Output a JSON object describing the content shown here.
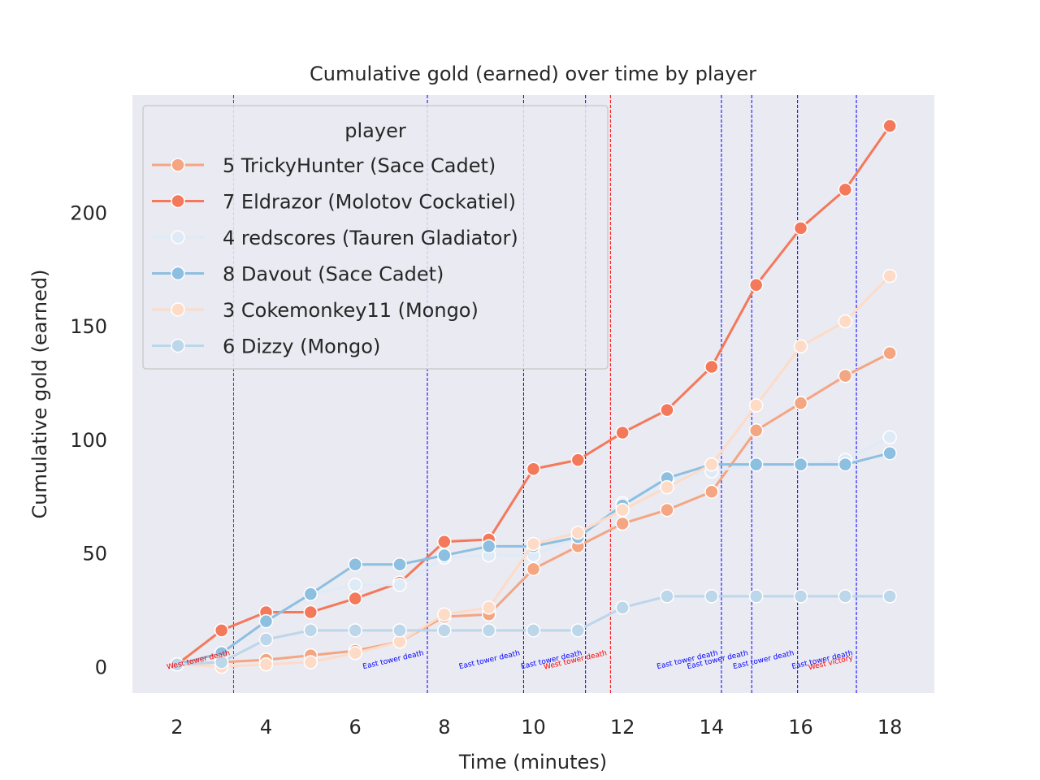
{
  "chart_data": {
    "type": "line",
    "title": "Cumulative gold (earned) over time by player",
    "xlabel": "Time (minutes)",
    "ylabel": "Cumulative gold (earned)",
    "xlim": [
      1.0,
      19.0
    ],
    "ylim": [
      -11.6,
      251.6
    ],
    "x_ticks": [
      2,
      4,
      6,
      8,
      10,
      12,
      14,
      16,
      18
    ],
    "y_ticks": [
      0,
      50,
      100,
      150,
      200
    ],
    "grid": false,
    "legend": {
      "title": "player",
      "placement": "top-left"
    },
    "x": [
      2,
      3,
      4,
      5,
      6,
      7,
      8,
      9,
      10,
      11,
      12,
      13,
      14,
      15,
      16,
      17,
      18
    ],
    "series": [
      {
        "name": "5 TrickyHunter (Sace Cadet)",
        "color": "#f4a582",
        "values": [
          1,
          2,
          3,
          5,
          7,
          11,
          22,
          23,
          43,
          53,
          63,
          69,
          77,
          104,
          116,
          128,
          138
        ]
      },
      {
        "name": "7 Eldrazor (Molotov Cockatiel)",
        "color": "#f4785a",
        "values": [
          1,
          16,
          24,
          24,
          30,
          37,
          55,
          56,
          87,
          91,
          103,
          113,
          132,
          168,
          193,
          210,
          238
        ]
      },
      {
        "name": "4 redscores (Tauren Gladiator)",
        "color": "#deebf7",
        "values": [
          1,
          6,
          20,
          32,
          36,
          36,
          48,
          49,
          49,
          57,
          72,
          82,
          86,
          89,
          89,
          91,
          101
        ]
      },
      {
        "name": "8 Davout (Sace Cadet)",
        "color": "#8dbfe0",
        "values": [
          1,
          6,
          20,
          32,
          45,
          45,
          49,
          53,
          53,
          57,
          71,
          83,
          89,
          89,
          89,
          89,
          94
        ]
      },
      {
        "name": "3 Cokemonkey11 (Mongo)",
        "color": "#fddbc7",
        "values": [
          1,
          0,
          1,
          2,
          6,
          11,
          23,
          26,
          54,
          59,
          69,
          79,
          89,
          115,
          141,
          152,
          172
        ]
      },
      {
        "name": "6 Dizzy (Mongo)",
        "color": "#bcd6ea",
        "values": [
          1,
          2,
          12,
          16,
          16,
          16,
          16,
          16,
          16,
          16,
          26,
          31,
          31,
          31,
          31,
          31,
          31
        ]
      }
    ],
    "events": [
      {
        "x": 3.27,
        "label": "West tower death",
        "color": "#ff0000"
      },
      {
        "x": 7.62,
        "label": "East tower death",
        "color": "#0000ff"
      },
      {
        "x": 9.78,
        "label": "East tower death",
        "color": "#0000ff"
      },
      {
        "x": 11.17,
        "label": "East tower death",
        "color": "#0000ff"
      },
      {
        "x": 11.73,
        "label": "West tower death",
        "color": "#ff0000"
      },
      {
        "x": 14.22,
        "label": "East tower death",
        "color": "#0000ff"
      },
      {
        "x": 14.9,
        "label": "East tower death",
        "color": "#0000ff"
      },
      {
        "x": 15.93,
        "label": "East tower death",
        "color": "#0000ff"
      },
      {
        "x": 17.25,
        "label": "East tower death",
        "color": "#0000ff"
      },
      {
        "x": 17.25,
        "label": "West victory",
        "color": "#ff0000"
      }
    ]
  }
}
